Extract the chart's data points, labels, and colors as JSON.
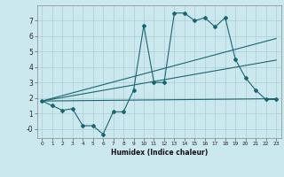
{
  "xlabel": "Humidex (Indice chaleur)",
  "bg_color": "#cce8ef",
  "grid_color": "#aacdd6",
  "line_color": "#1a6670",
  "xlim": [
    -0.5,
    23.5
  ],
  "ylim": [
    -0.6,
    8.0
  ],
  "yticks": [
    0,
    1,
    2,
    3,
    4,
    5,
    6,
    7
  ],
  "ytick_labels": [
    "-0",
    "1",
    "2",
    "3",
    "4",
    "5",
    "6",
    "7"
  ],
  "xticks": [
    0,
    1,
    2,
    3,
    4,
    5,
    6,
    7,
    8,
    9,
    10,
    11,
    12,
    13,
    14,
    15,
    16,
    17,
    18,
    19,
    20,
    21,
    22,
    23
  ],
  "line1_x": [
    0,
    1,
    2,
    3,
    4,
    5,
    6,
    7,
    8,
    9,
    10,
    11,
    12,
    13,
    14,
    15,
    16,
    17,
    18,
    19,
    20,
    21,
    22,
    23
  ],
  "line1_y": [
    1.8,
    1.5,
    1.2,
    1.3,
    0.2,
    0.2,
    -0.35,
    1.1,
    1.1,
    2.5,
    6.7,
    3.0,
    3.0,
    7.5,
    7.5,
    7.0,
    7.2,
    6.6,
    7.2,
    4.5,
    3.3,
    2.5,
    1.9,
    1.9
  ],
  "line2_x": [
    0,
    23
  ],
  "line2_y": [
    1.8,
    1.95
  ],
  "line3_x": [
    0,
    23
  ],
  "line3_y": [
    1.8,
    5.85
  ],
  "line4_x": [
    0,
    23
  ],
  "line4_y": [
    1.8,
    4.45
  ]
}
